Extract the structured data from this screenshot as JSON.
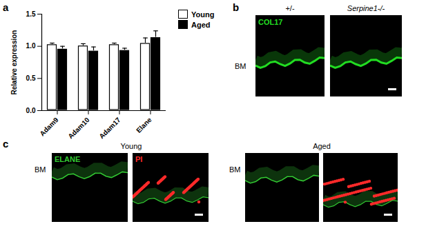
{
  "chart_data": {
    "type": "bar",
    "ylabel": "Relative expression",
    "categories": [
      "Adam9",
      "Adam10",
      "Adam17",
      "Elane"
    ],
    "series": [
      {
        "name": "Young",
        "color": "#ffffff",
        "values": [
          1.03,
          1.01,
          1.03,
          1.05
        ],
        "errors": [
          0.02,
          0.03,
          0.02,
          0.08
        ]
      },
      {
        "name": "Aged",
        "color": "#000000",
        "values": [
          0.96,
          0.93,
          0.94,
          1.14
        ],
        "errors": [
          0.04,
          0.06,
          0.03,
          0.1
        ]
      }
    ],
    "ylim": [
      0,
      1.5
    ],
    "yticks": [
      {
        "value": 0,
        "label": "0.0"
      },
      {
        "value": 0.5,
        "label": "0.5"
      },
      {
        "value": 1,
        "label": "1.0"
      },
      {
        "value": 1.5,
        "label": "1.5"
      }
    ],
    "legend": "top-right"
  },
  "panel_a": {
    "label": "a"
  },
  "panel_b": {
    "label": "b",
    "side_label": "BM",
    "images": [
      {
        "title": "+/-",
        "stain": "COL17",
        "stain_color": "#22dd22"
      },
      {
        "title": "Serpine1-/-"
      }
    ]
  },
  "panel_c": {
    "label": "c",
    "stain_colors": [
      "#33cc33",
      "#ff2a2a"
    ],
    "groups": [
      {
        "title": "Young",
        "side_label": "BM",
        "stains": [
          "ELANE",
          "PI"
        ]
      },
      {
        "title": "Aged",
        "side_label": "BM"
      }
    ]
  }
}
